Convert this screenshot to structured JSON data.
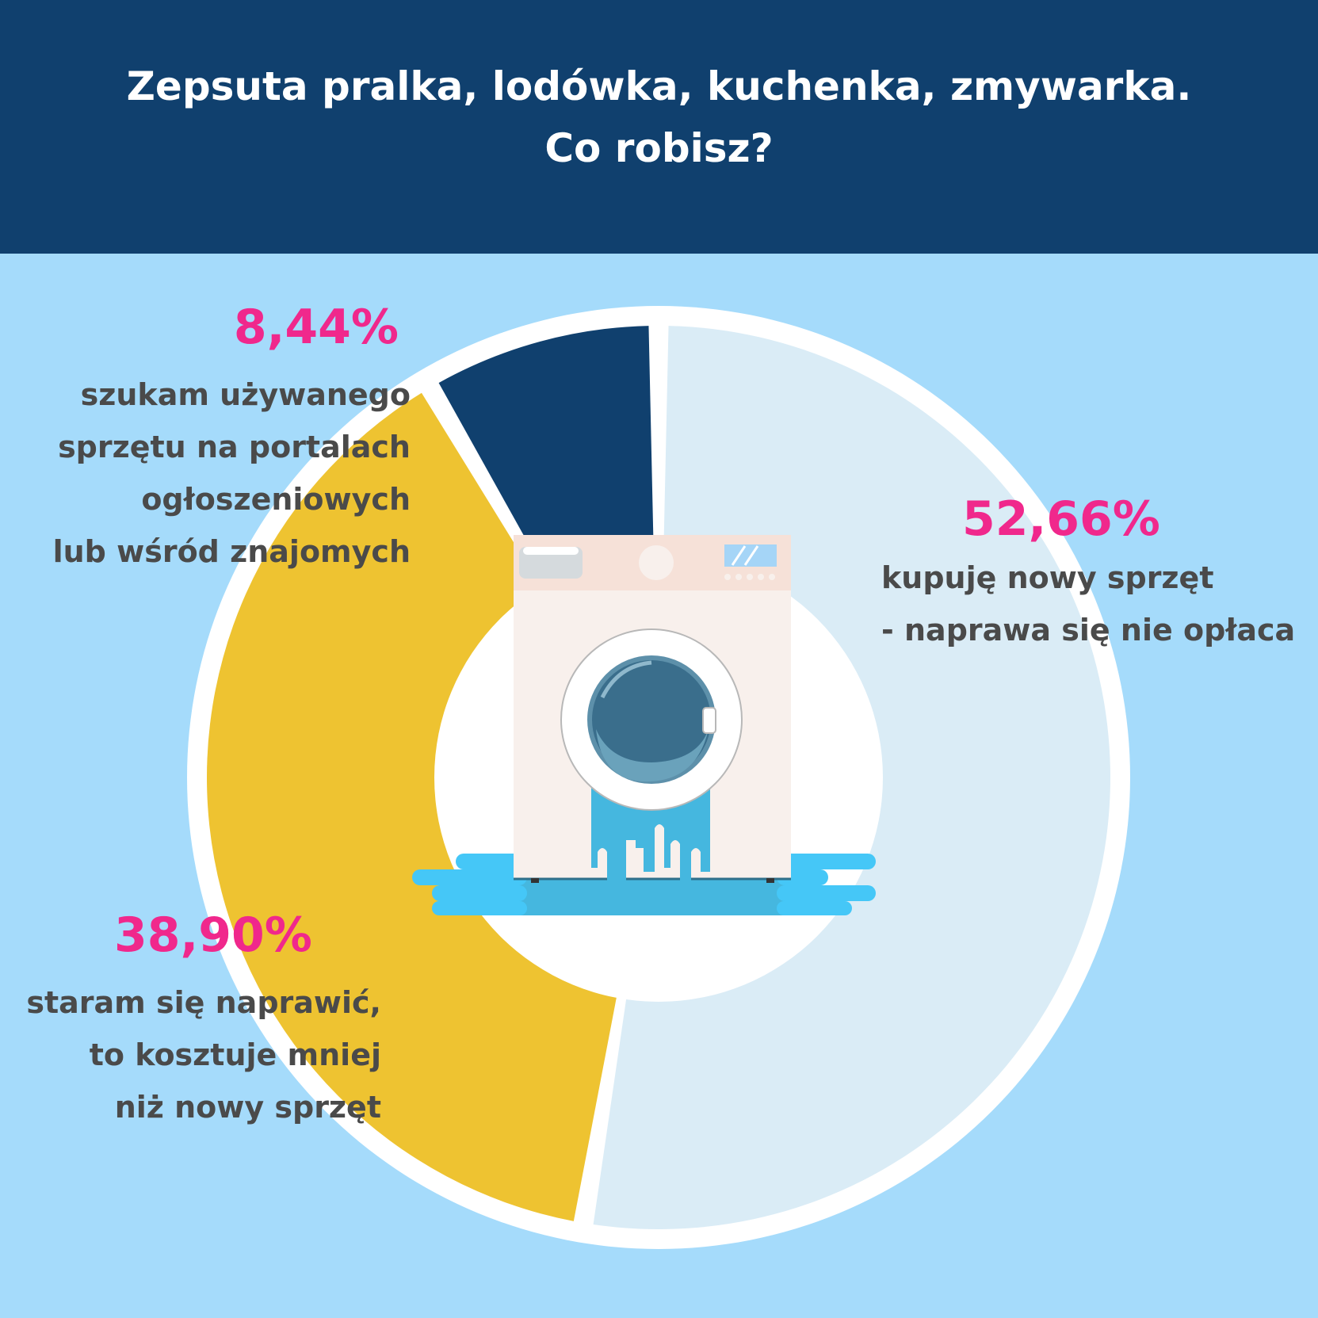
{
  "header": {
    "title_line1": "Zepsuta pralka, lodówka, kuchenka, zmywarka.",
    "title_line2": "Co robisz?"
  },
  "chart_data": {
    "type": "pie",
    "title": "Zepsuta pralka, lodówka, kuchenka, zmywarka. Co robisz?",
    "slices": [
      {
        "value": 52.66,
        "value_label": "52,66%",
        "label_lines": [
          "kupuję nowy sprzęt",
          "- naprawa się nie opłaca"
        ],
        "color": "#daecf6"
      },
      {
        "value": 38.9,
        "value_label": "38,90%",
        "label_lines": [
          "staram się naprawić,",
          "to kosztuje mniej",
          "niż nowy sprzęt"
        ],
        "color": "#eec331"
      },
      {
        "value": 8.44,
        "value_label": "8,44%",
        "label_lines": [
          "szukam używanego",
          "sprzętu na portalach",
          "ogłoszeniowych",
          "lub wśród znajomych"
        ],
        "color": "#10406e"
      }
    ]
  },
  "colors": {
    "background": "#a5dbfb",
    "header": "#10406e",
    "accent_pink": "#f0288c",
    "text_dark": "#4a4a4a",
    "water": "#45c7f7"
  },
  "illustration": {
    "icon": "washing-machine-icon"
  }
}
